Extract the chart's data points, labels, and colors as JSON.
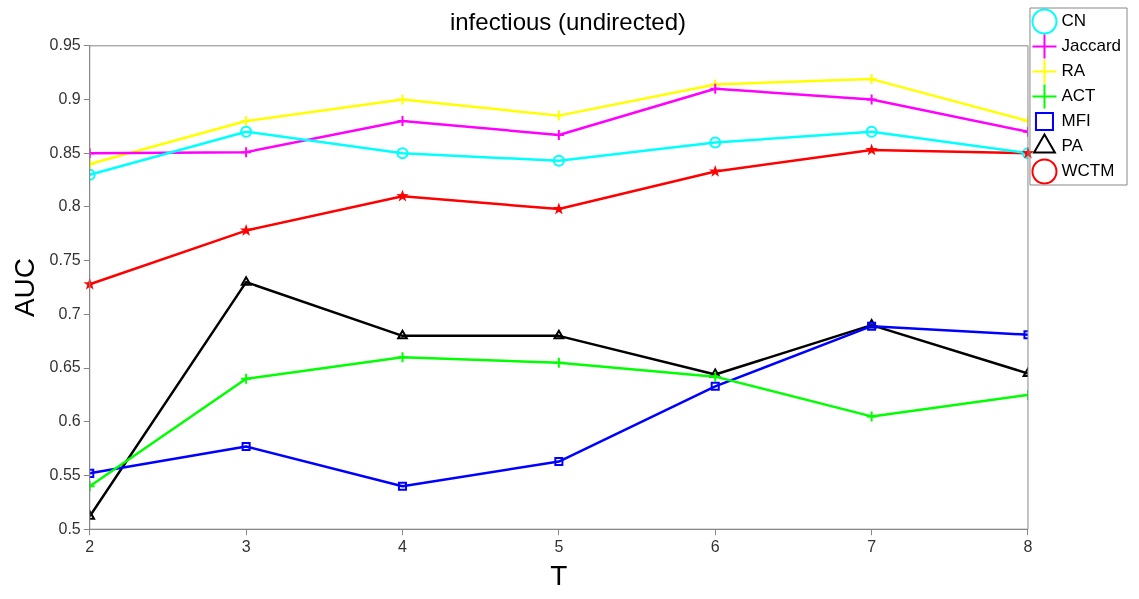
{
  "chart_data": {
    "type": "line",
    "title": "infectious (undirected)",
    "xlabel": "T",
    "ylabel": "AUC",
    "x": [
      2,
      3,
      4,
      5,
      6,
      7,
      8
    ],
    "xlim": [
      2,
      8
    ],
    "xticks": [
      2,
      3,
      4,
      5,
      6,
      7,
      8
    ],
    "ylim": [
      0.5,
      0.95
    ],
    "yticks": [
      0.5,
      0.55,
      0.6,
      0.65,
      0.7,
      0.75,
      0.8,
      0.85,
      0.9,
      0.95
    ],
    "grid": false,
    "legend": "top right",
    "line_style": "solid",
    "series": [
      {
        "name": "CN",
        "color": "#00ffff",
        "marker": "circle",
        "values": [
          0.83,
          0.87,
          0.85,
          0.843,
          0.86,
          0.87,
          0.85
        ]
      },
      {
        "name": "Jaccard",
        "color": "#ff00ff",
        "marker": "cross",
        "values": [
          0.85,
          0.851,
          0.88,
          0.867,
          0.91,
          0.9,
          0.87
        ]
      },
      {
        "name": "RA",
        "color": "#ffff00",
        "marker": "cross",
        "values": [
          0.84,
          0.88,
          0.9,
          0.885,
          0.914,
          0.919,
          0.88
        ]
      },
      {
        "name": "ACT",
        "color": "#00ff00",
        "marker": "cross",
        "values": [
          0.54,
          0.64,
          0.66,
          0.655,
          0.642,
          0.605,
          0.625
        ]
      },
      {
        "name": "MFI",
        "color": "#0000ff",
        "marker": "square",
        "values": [
          0.552,
          0.577,
          0.54,
          0.563,
          0.633,
          0.689,
          0.681
        ]
      },
      {
        "name": "PA",
        "color": "#000000",
        "marker": "triangle",
        "values": [
          0.512,
          0.73,
          0.68,
          0.68,
          0.644,
          0.69,
          0.645
        ]
      },
      {
        "name": "WCTM",
        "color": "#ff0000",
        "marker": "star",
        "values": [
          0.728,
          0.778,
          0.81,
          0.798,
          0.833,
          0.853,
          0.85
        ]
      }
    ]
  }
}
